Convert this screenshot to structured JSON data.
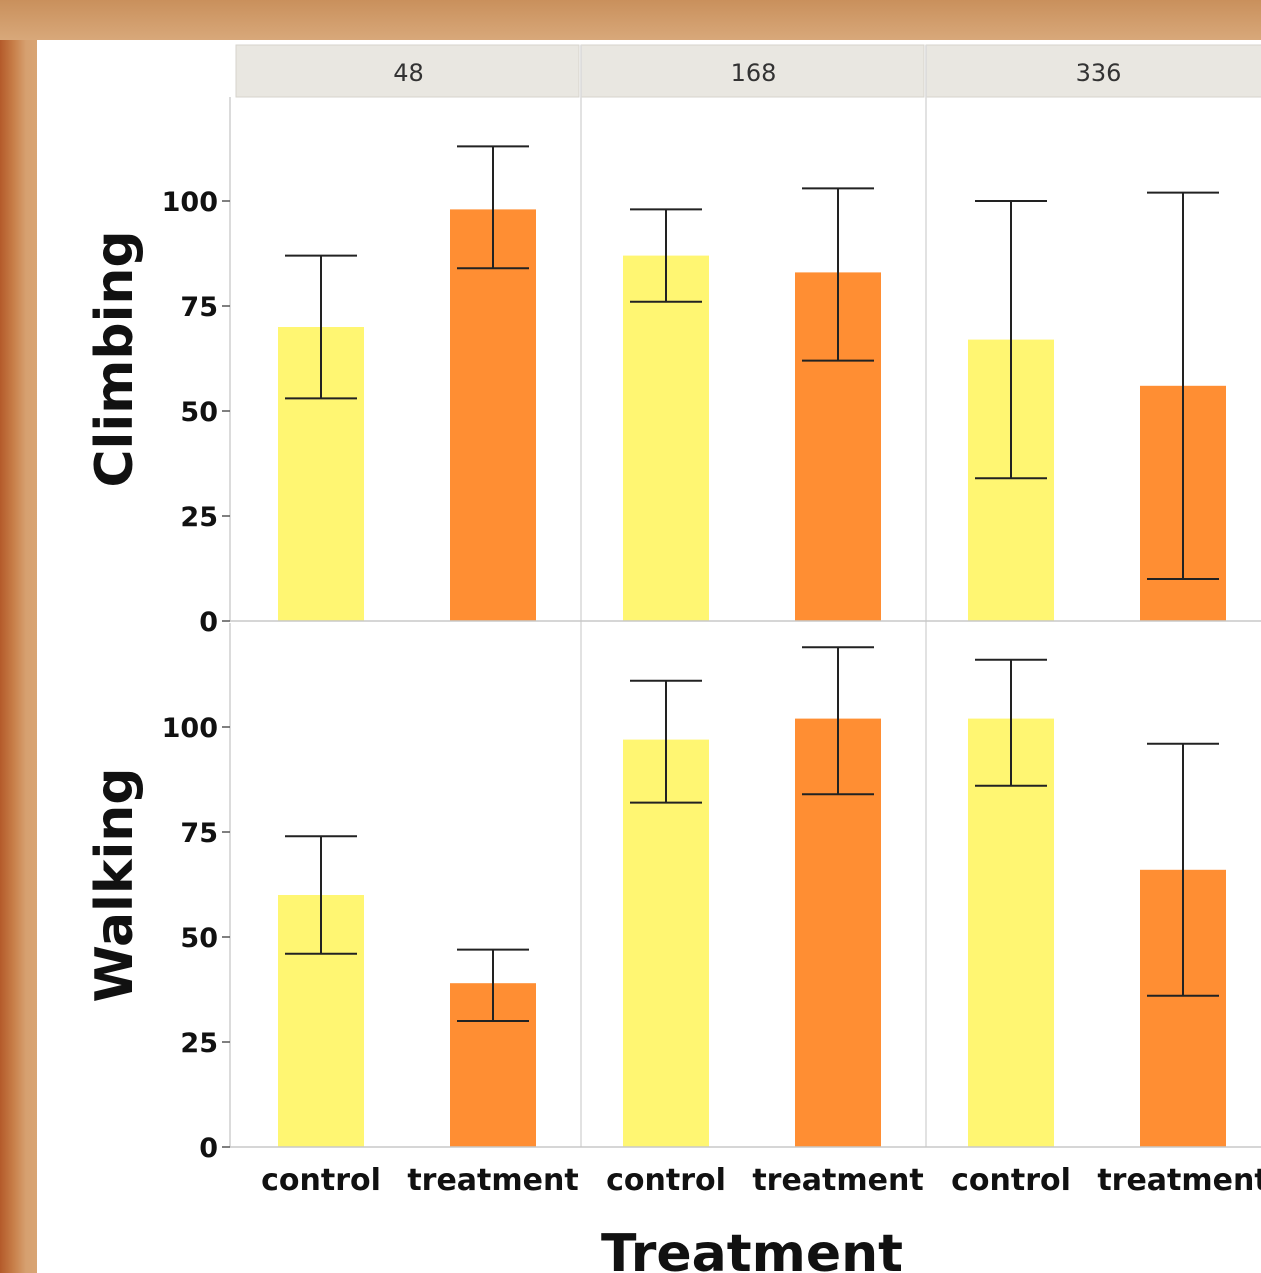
{
  "chart_data": {
    "type": "bar",
    "layout": "faceted grid",
    "columns": [
      "48",
      "168",
      "336"
    ],
    "rows": [
      "Climbing",
      "Walking"
    ],
    "categories": [
      "control",
      "treatment"
    ],
    "xlabel": "Treatment",
    "yticks": [
      0,
      25,
      50,
      75,
      100
    ],
    "ylim": [
      0,
      120
    ],
    "grid": false,
    "colors": {
      "control": "#fff672",
      "treatment": "#ff8e33",
      "error_bar": "#222222",
      "strip": "#e9e7e1"
    },
    "panels": [
      {
        "row": "Climbing",
        "column": "48",
        "values": [
          70,
          98
        ],
        "error_low": [
          53,
          84
        ],
        "error_high": [
          87,
          113
        ]
      },
      {
        "row": "Climbing",
        "column": "168",
        "values": [
          87,
          83
        ],
        "error_low": [
          76,
          62
        ],
        "error_high": [
          98,
          103
        ]
      },
      {
        "row": "Climbing",
        "column": "336",
        "values": [
          67,
          56
        ],
        "error_low": [
          34,
          10
        ],
        "error_high": [
          100,
          102
        ]
      },
      {
        "row": "Walking",
        "column": "48",
        "values": [
          60,
          39
        ],
        "error_low": [
          46,
          30
        ],
        "error_high": [
          74,
          47
        ]
      },
      {
        "row": "Walking",
        "column": "168",
        "values": [
          97,
          102
        ],
        "error_low": [
          82,
          84
        ],
        "error_high": [
          111,
          119
        ]
      },
      {
        "row": "Walking",
        "column": "336",
        "values": [
          102,
          66
        ],
        "error_low": [
          86,
          36
        ],
        "error_high": [
          116,
          96
        ]
      }
    ]
  }
}
